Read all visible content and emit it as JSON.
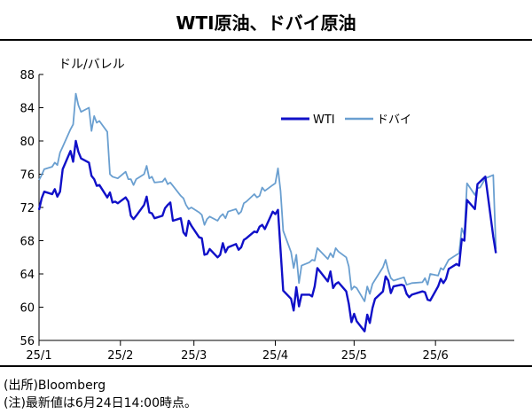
{
  "header": {
    "title": "WTI原油、ドバイ原油"
  },
  "footer": {
    "source": "(出所)Bloomberg",
    "note": "(注)最新値は6月24日14:00時点。"
  },
  "colors": {
    "wti": "#1010c8",
    "dubai": "#6a9fd0"
  },
  "chart_data": {
    "type": "line",
    "title": "WTI原油、ドバイ原油",
    "ylabel": "ドル/バレル",
    "xlabel": "",
    "ylim": [
      56,
      88
    ],
    "yticks": [
      56,
      60,
      64,
      68,
      72,
      76,
      80,
      84,
      88
    ],
    "xticks": [
      "25/1",
      "25/2",
      "25/3",
      "25/4",
      "25/5",
      "25/6"
    ],
    "grid": false,
    "legend": "upper-right",
    "series": [
      {
        "name": "WTI",
        "x": [
          "2025-01-01",
          "2025-01-02",
          "2025-01-03",
          "2025-01-06",
          "2025-01-07",
          "2025-01-08",
          "2025-01-09",
          "2025-01-10",
          "2025-01-13",
          "2025-01-14",
          "2025-01-15",
          "2025-01-16",
          "2025-01-17",
          "2025-01-20",
          "2025-01-21",
          "2025-01-22",
          "2025-01-23",
          "2025-01-24",
          "2025-01-27",
          "2025-01-28",
          "2025-01-29",
          "2025-01-30",
          "2025-01-31",
          "2025-02-03",
          "2025-02-04",
          "2025-02-05",
          "2025-02-06",
          "2025-02-07",
          "2025-02-10",
          "2025-02-11",
          "2025-02-12",
          "2025-02-13",
          "2025-02-14",
          "2025-02-17",
          "2025-02-18",
          "2025-02-19",
          "2025-02-20",
          "2025-02-21",
          "2025-02-24",
          "2025-02-25",
          "2025-02-26",
          "2025-02-27",
          "2025-02-28",
          "2025-03-03",
          "2025-03-04",
          "2025-03-05",
          "2025-03-06",
          "2025-03-07",
          "2025-03-10",
          "2025-03-11",
          "2025-03-12",
          "2025-03-13",
          "2025-03-14",
          "2025-03-17",
          "2025-03-18",
          "2025-03-19",
          "2025-03-20",
          "2025-03-21",
          "2025-03-24",
          "2025-03-25",
          "2025-03-26",
          "2025-03-27",
          "2025-03-28",
          "2025-03-31",
          "2025-04-01",
          "2025-04-02",
          "2025-04-03",
          "2025-04-04",
          "2025-04-07",
          "2025-04-08",
          "2025-04-09",
          "2025-04-10",
          "2025-04-11",
          "2025-04-14",
          "2025-04-15",
          "2025-04-16",
          "2025-04-17",
          "2025-04-21",
          "2025-04-22",
          "2025-04-23",
          "2025-04-24",
          "2025-04-25",
          "2025-04-28",
          "2025-04-29",
          "2025-04-30",
          "2025-05-01",
          "2025-05-02",
          "2025-05-05",
          "2025-05-06",
          "2025-05-07",
          "2025-05-08",
          "2025-05-09",
          "2025-05-12",
          "2025-05-13",
          "2025-05-14",
          "2025-05-15",
          "2025-05-16",
          "2025-05-19",
          "2025-05-20",
          "2025-05-21",
          "2025-05-22",
          "2025-05-23",
          "2025-05-27",
          "2025-05-28",
          "2025-05-29",
          "2025-05-30",
          "2025-06-02",
          "2025-06-03",
          "2025-06-04",
          "2025-06-05",
          "2025-06-06",
          "2025-06-09",
          "2025-06-10",
          "2025-06-11",
          "2025-06-12",
          "2025-06-13",
          "2025-06-16",
          "2025-06-17",
          "2025-06-18",
          "2025-06-20",
          "2025-06-23",
          "2025-06-24"
        ],
        "values": [
          71.7,
          73.1,
          73.9,
          73.6,
          74.2,
          73.3,
          73.9,
          76.6,
          78.8,
          77.5,
          80.0,
          78.7,
          77.9,
          77.4,
          75.8,
          75.4,
          74.6,
          74.7,
          73.2,
          73.8,
          72.6,
          72.7,
          72.5,
          73.2,
          72.7,
          71.0,
          70.6,
          71.0,
          72.3,
          73.3,
          71.4,
          71.3,
          70.7,
          71.0,
          71.9,
          72.3,
          72.6,
          70.4,
          70.7,
          69.0,
          68.6,
          70.4,
          69.8,
          68.4,
          68.3,
          66.3,
          66.4,
          67.0,
          66.0,
          66.3,
          67.7,
          66.6,
          67.2,
          67.6,
          66.9,
          67.2,
          68.1,
          68.3,
          69.1,
          69.0,
          69.7,
          69.9,
          69.4,
          71.5,
          71.2,
          71.7,
          66.9,
          62.0,
          61.0,
          59.6,
          62.4,
          60.1,
          61.5,
          61.5,
          61.3,
          62.5,
          64.7,
          63.1,
          64.3,
          62.3,
          62.8,
          63.0,
          61.9,
          60.4,
          58.2,
          59.2,
          58.3,
          57.1,
          59.1,
          58.1,
          59.9,
          61.0,
          61.9,
          63.7,
          63.2,
          61.7,
          62.5,
          62.7,
          62.6,
          61.6,
          61.2,
          61.5,
          61.9,
          61.8,
          60.9,
          60.8,
          62.5,
          63.4,
          62.9,
          63.4,
          64.6,
          65.2,
          65.0,
          68.2,
          68.0,
          72.9,
          71.8,
          74.8,
          75.1,
          75.7,
          68.5,
          66.5
        ]
      },
      {
        "name": "ドバイ",
        "x": [
          "2025-01-01",
          "2025-01-02",
          "2025-01-03",
          "2025-01-06",
          "2025-01-07",
          "2025-01-08",
          "2025-01-09",
          "2025-01-10",
          "2025-01-13",
          "2025-01-14",
          "2025-01-15",
          "2025-01-16",
          "2025-01-17",
          "2025-01-20",
          "2025-01-21",
          "2025-01-22",
          "2025-01-23",
          "2025-01-24",
          "2025-01-27",
          "2025-01-28",
          "2025-01-29",
          "2025-01-30",
          "2025-01-31",
          "2025-02-03",
          "2025-02-04",
          "2025-02-05",
          "2025-02-06",
          "2025-02-07",
          "2025-02-10",
          "2025-02-11",
          "2025-02-12",
          "2025-02-13",
          "2025-02-14",
          "2025-02-17",
          "2025-02-18",
          "2025-02-19",
          "2025-02-20",
          "2025-02-21",
          "2025-02-24",
          "2025-02-25",
          "2025-02-26",
          "2025-02-27",
          "2025-02-28",
          "2025-03-03",
          "2025-03-04",
          "2025-03-05",
          "2025-03-06",
          "2025-03-07",
          "2025-03-10",
          "2025-03-11",
          "2025-03-12",
          "2025-03-13",
          "2025-03-14",
          "2025-03-17",
          "2025-03-18",
          "2025-03-19",
          "2025-03-20",
          "2025-03-21",
          "2025-03-24",
          "2025-03-25",
          "2025-03-26",
          "2025-03-27",
          "2025-03-28",
          "2025-03-31",
          "2025-04-01",
          "2025-04-02",
          "2025-04-03",
          "2025-04-04",
          "2025-04-07",
          "2025-04-08",
          "2025-04-09",
          "2025-04-10",
          "2025-04-11",
          "2025-04-14",
          "2025-04-15",
          "2025-04-16",
          "2025-04-17",
          "2025-04-21",
          "2025-04-22",
          "2025-04-23",
          "2025-04-24",
          "2025-04-25",
          "2025-04-28",
          "2025-04-29",
          "2025-04-30",
          "2025-05-01",
          "2025-05-02",
          "2025-05-05",
          "2025-05-06",
          "2025-05-07",
          "2025-05-08",
          "2025-05-09",
          "2025-05-12",
          "2025-05-13",
          "2025-05-14",
          "2025-05-15",
          "2025-05-16",
          "2025-05-19",
          "2025-05-20",
          "2025-05-21",
          "2025-05-22",
          "2025-05-23",
          "2025-05-27",
          "2025-05-28",
          "2025-05-29",
          "2025-05-30",
          "2025-06-02",
          "2025-06-03",
          "2025-06-04",
          "2025-06-05",
          "2025-06-06",
          "2025-06-09",
          "2025-06-10",
          "2025-06-11",
          "2025-06-12",
          "2025-06-13",
          "2025-06-16",
          "2025-06-17",
          "2025-06-18",
          "2025-06-20",
          "2025-06-23",
          "2025-06-24"
        ],
        "values": [
          75.3,
          75.9,
          76.6,
          76.9,
          77.4,
          77.1,
          78.6,
          79.3,
          81.4,
          82.0,
          85.7,
          84.3,
          83.5,
          84.0,
          81.2,
          83.0,
          82.2,
          82.4,
          81.1,
          76.0,
          75.7,
          75.6,
          75.5,
          76.3,
          75.4,
          75.4,
          74.7,
          75.4,
          76.0,
          77.0,
          75.5,
          75.7,
          75.0,
          75.1,
          75.5,
          74.8,
          75.0,
          74.6,
          73.4,
          73.1,
          72.3,
          71.8,
          72.0,
          71.4,
          71.1,
          69.9,
          70.6,
          70.9,
          70.4,
          70.9,
          71.2,
          70.7,
          71.5,
          71.8,
          71.2,
          71.5,
          72.5,
          72.7,
          73.6,
          73.2,
          73.4,
          74.4,
          74.0,
          74.7,
          74.9,
          76.7,
          74.0,
          69.2,
          66.6,
          64.7,
          66.3,
          62.9,
          65.0,
          65.4,
          65.7,
          65.6,
          67.1,
          65.8,
          66.5,
          66.0,
          67.1,
          66.7,
          66.0,
          64.9,
          62.1,
          62.5,
          62.3,
          60.7,
          62.5,
          61.6,
          62.8,
          63.3,
          64.8,
          65.7,
          64.4,
          63.5,
          63.2,
          63.5,
          63.6,
          62.7,
          62.8,
          62.9,
          63.0,
          63.5,
          62.7,
          64.0,
          63.8,
          64.7,
          64.5,
          65.1,
          65.7,
          66.3,
          66.5,
          69.5,
          68.7,
          74.9,
          73.5,
          74.3,
          74.4,
          75.5,
          75.9,
          67.0
        ]
      }
    ]
  }
}
